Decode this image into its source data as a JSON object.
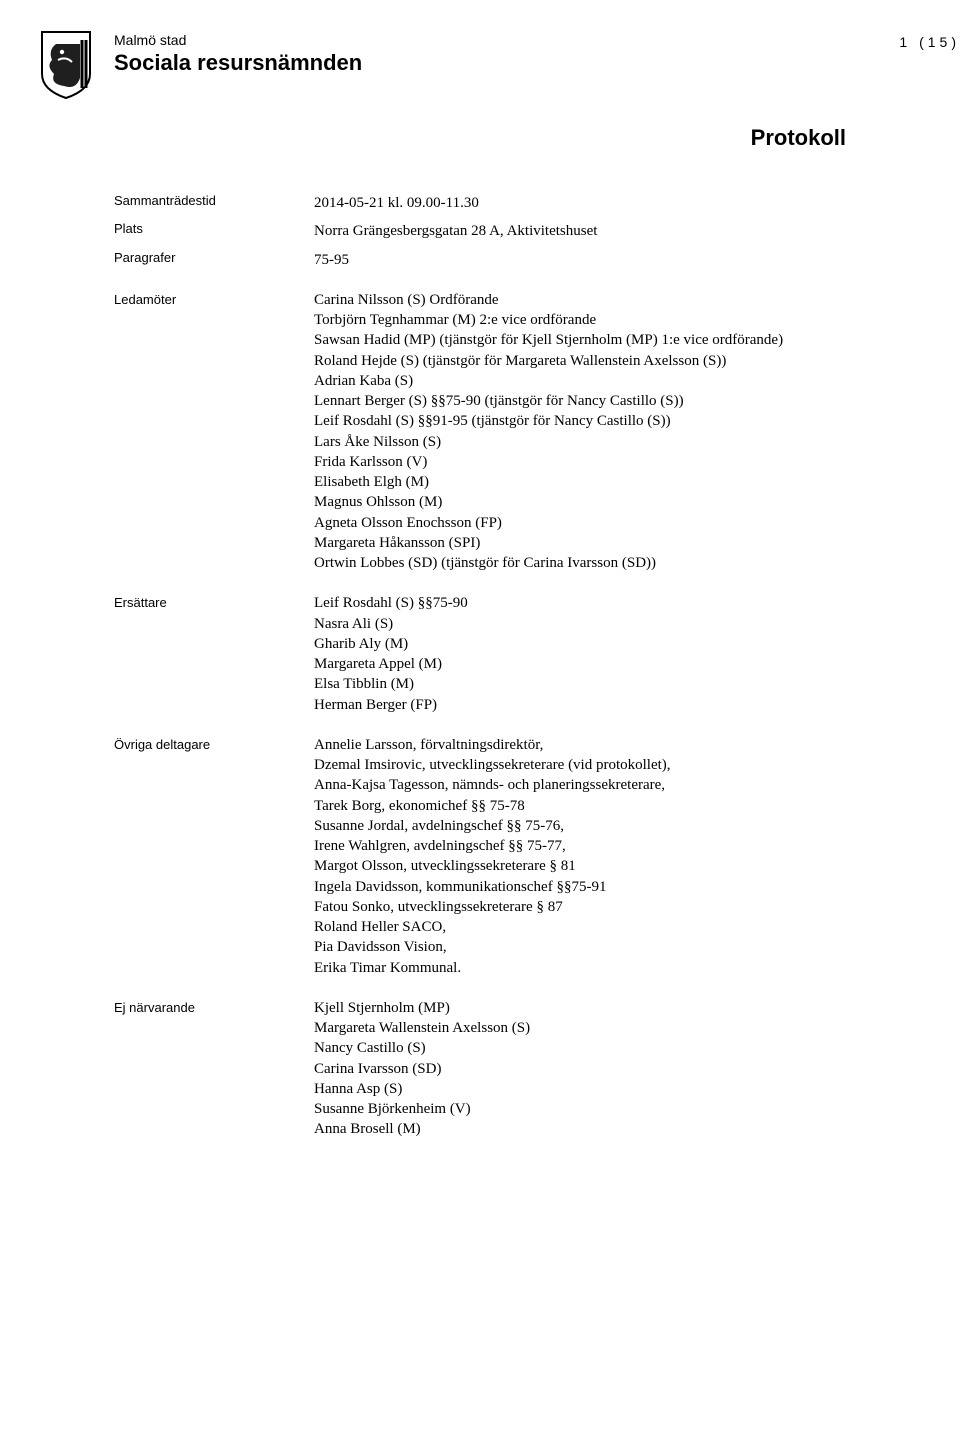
{
  "header": {
    "org": "Malmö stad",
    "committee": "Sociala resursnämnden",
    "page_count": "1 (15)",
    "doc_type": "Protokoll"
  },
  "meta": {
    "time_label": "Sammanträdestid",
    "time_value": "2014-05-21 kl. 09.00-11.30",
    "place_label": "Plats",
    "place_value": "Norra Grängesbergsgatan 28 A, Aktivitetshuset",
    "paragraphs_label": "Paragrafer",
    "paragraphs_value": "75-95"
  },
  "ledamoter": {
    "label": "Ledamöter",
    "lines": [
      "Carina Nilsson (S) Ordförande",
      "Torbjörn Tegnhammar (M) 2:e vice ordförande",
      "Sawsan Hadid (MP) (tjänstgör för Kjell Stjernholm (MP) 1:e vice ordförande)",
      "Roland Hejde (S) (tjänstgör för Margareta Wallenstein Axelsson (S))",
      "Adrian Kaba (S)",
      "Lennart Berger (S) §§75-90 (tjänstgör för Nancy Castillo (S))",
      "Leif Rosdahl (S) §§91-95 (tjänstgör för Nancy Castillo (S))",
      "Lars Åke Nilsson (S)",
      "Frida Karlsson (V)",
      "Elisabeth Elgh (M)",
      "Magnus Ohlsson (M)",
      "Agneta Olsson Enochsson (FP)",
      "Margareta Håkansson (SPI)",
      "Ortwin Lobbes (SD) (tjänstgör för Carina Ivarsson (SD))"
    ]
  },
  "ersattare": {
    "label": "Ersättare",
    "lines": [
      "Leif Rosdahl (S) §§75-90",
      "Nasra Ali (S)",
      "Gharib Aly (M)",
      "Margareta Appel (M)",
      "Elsa Tibblin (M)",
      "Herman Berger (FP)"
    ]
  },
  "ovriga": {
    "label": "Övriga deltagare",
    "lines": [
      "Annelie Larsson, förvaltningsdirektör,",
      "Dzemal Imsirovic, utvecklingssekreterare (vid protokollet),",
      "Anna-Kajsa Tagesson, nämnds- och planeringssekreterare,",
      "Tarek Borg, ekonomichef §§ 75-78",
      "Susanne Jordal, avdelningschef §§ 75-76,",
      "Irene Wahlgren, avdelningschef §§ 75-77,",
      "Margot Olsson, utvecklingssekreterare § 81",
      "Ingela Davidsson, kommunikationschef §§75-91",
      "Fatou Sonko, utvecklingssekreterare § 87",
      "Roland Heller SACO,",
      "Pia Davidsson Vision,",
      "Erika Timar Kommunal."
    ]
  },
  "ej_narvarande": {
    "label": "Ej närvarande",
    "lines": [
      "Kjell Stjernholm (MP)",
      "Margareta Wallenstein Axelsson (S)",
      "Nancy Castillo (S)",
      "Carina Ivarsson (SD)",
      "Hanna Asp (S)",
      "Susanne Björkenheim (V)",
      "Anna Brosell (M)"
    ]
  }
}
